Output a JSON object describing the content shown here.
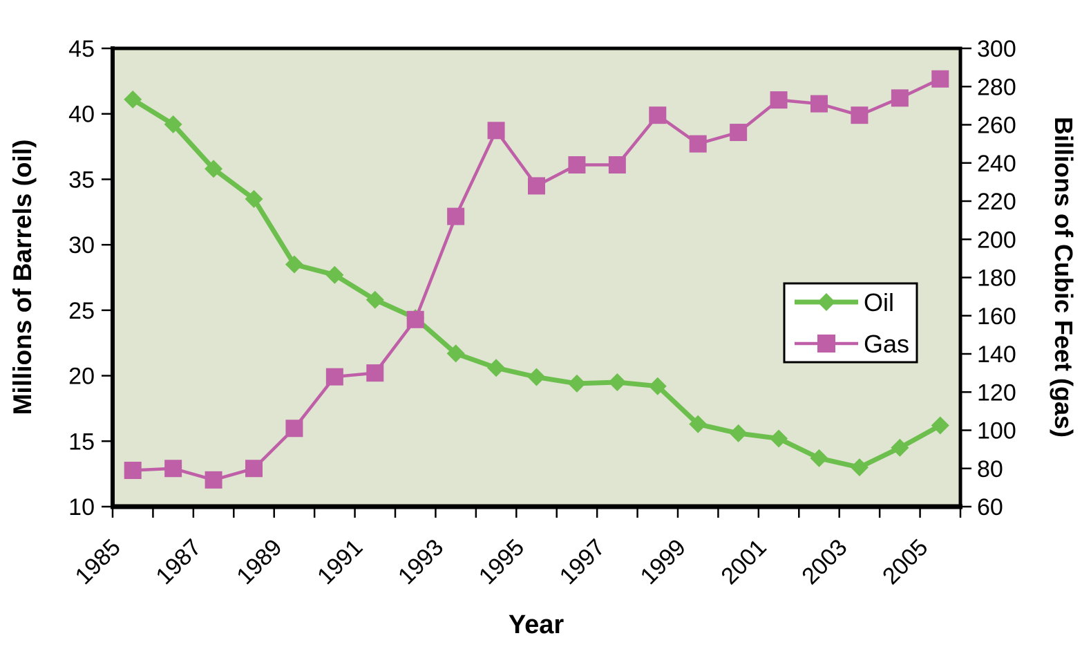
{
  "chart_data": {
    "type": "line",
    "title": "",
    "xlabel": "Year",
    "x": [
      1985,
      1986,
      1987,
      1988,
      1989,
      1990,
      1991,
      1992,
      1993,
      1994,
      1995,
      1996,
      1997,
      1998,
      1999,
      2000,
      2001,
      2002,
      2003,
      2004,
      2005
    ],
    "x_tick_labels": [
      "1985",
      "1987",
      "1989",
      "1991",
      "1993",
      "1995",
      "1997",
      "1999",
      "2001",
      "2003",
      "2005"
    ],
    "x_label_interval": 2,
    "y_left": {
      "label": "Millions of Barrels (oil)",
      "min": 10,
      "max": 45,
      "step": 5,
      "ticks": [
        45,
        40,
        35,
        30,
        25,
        20,
        15,
        10
      ]
    },
    "y_right": {
      "label": "Billions of Cubic Feet (gas)",
      "min": 60,
      "max": 300,
      "step": 20,
      "ticks": [
        300,
        280,
        260,
        240,
        220,
        200,
        180,
        160,
        140,
        120,
        100,
        80,
        60
      ]
    },
    "series": [
      {
        "name": "Oil",
        "axis": "left",
        "color": "#6cbf4d",
        "marker": "diamond",
        "values": [
          41.1,
          39.2,
          35.8,
          33.5,
          28.5,
          27.7,
          25.8,
          24.4,
          21.7,
          20.6,
          19.9,
          19.4,
          19.5,
          19.2,
          16.3,
          15.6,
          15.2,
          13.7,
          13.0,
          14.5,
          16.2
        ]
      },
      {
        "name": "Gas",
        "axis": "right",
        "color": "#bf5fa8",
        "marker": "square",
        "values": [
          79,
          80,
          74,
          80,
          101,
          128,
          130,
          158,
          212,
          257,
          228,
          239,
          239,
          265,
          250,
          256,
          273,
          271,
          265,
          274,
          284
        ]
      }
    ],
    "legend": {
      "position": "middle-right",
      "items": [
        "Oil",
        "Gas"
      ]
    },
    "plot_bg_color": "#dfe5d0",
    "axis_color": "#000000",
    "grid": false
  }
}
